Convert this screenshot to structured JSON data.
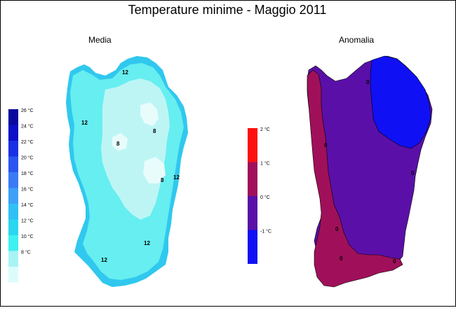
{
  "title": "Temperature minime - Maggio 2011",
  "panels": {
    "media": {
      "label": "Media"
    },
    "anomalia": {
      "label": "Anomalia"
    }
  },
  "legend_media": {
    "entries": [
      {
        "label": "26 °C",
        "color": "#0a0a9e"
      },
      {
        "label": "24 °C",
        "color": "#0b10c8"
      },
      {
        "label": "22 °C",
        "color": "#1a30e6"
      },
      {
        "label": "20 °C",
        "color": "#2a55f0"
      },
      {
        "label": "18 °C",
        "color": "#3a7af5"
      },
      {
        "label": "16 °C",
        "color": "#3ea0f8"
      },
      {
        "label": "14 °C",
        "color": "#30c0f5"
      },
      {
        "label": "12 °C",
        "color": "#2ad6f0"
      },
      {
        "label": "10 °C",
        "color": "#3ef0f0"
      },
      {
        "label": "8 °C",
        "color": "#a8f4f4"
      },
      {
        "label": "",
        "color": "#dcfcfc"
      }
    ]
  },
  "legend_anomalia": {
    "entries": [
      {
        "label": "2 °C",
        "color": "#ff1010"
      },
      {
        "label": "1 °C",
        "color": "#a0105a"
      },
      {
        "label": "0 °C",
        "color": "#5a10a8"
      },
      {
        "label": "-1 °C",
        "color": "#1010f5"
      }
    ]
  },
  "contour_labels_media": [
    "12",
    "12",
    "8",
    "8",
    "8",
    "12",
    "12",
    "12"
  ],
  "contour_labels_anomalia": [
    "0",
    "0",
    "0",
    "0",
    "0",
    "0"
  ],
  "colors": {
    "media_base": "#66eef0",
    "media_inner": "#bdf5f5",
    "media_core": "#e8fcfc",
    "media_coast": "#30c8ee",
    "anom_main": "#5a10a8",
    "anom_pos": "#a0105a",
    "anom_neg": "#1010f5"
  }
}
